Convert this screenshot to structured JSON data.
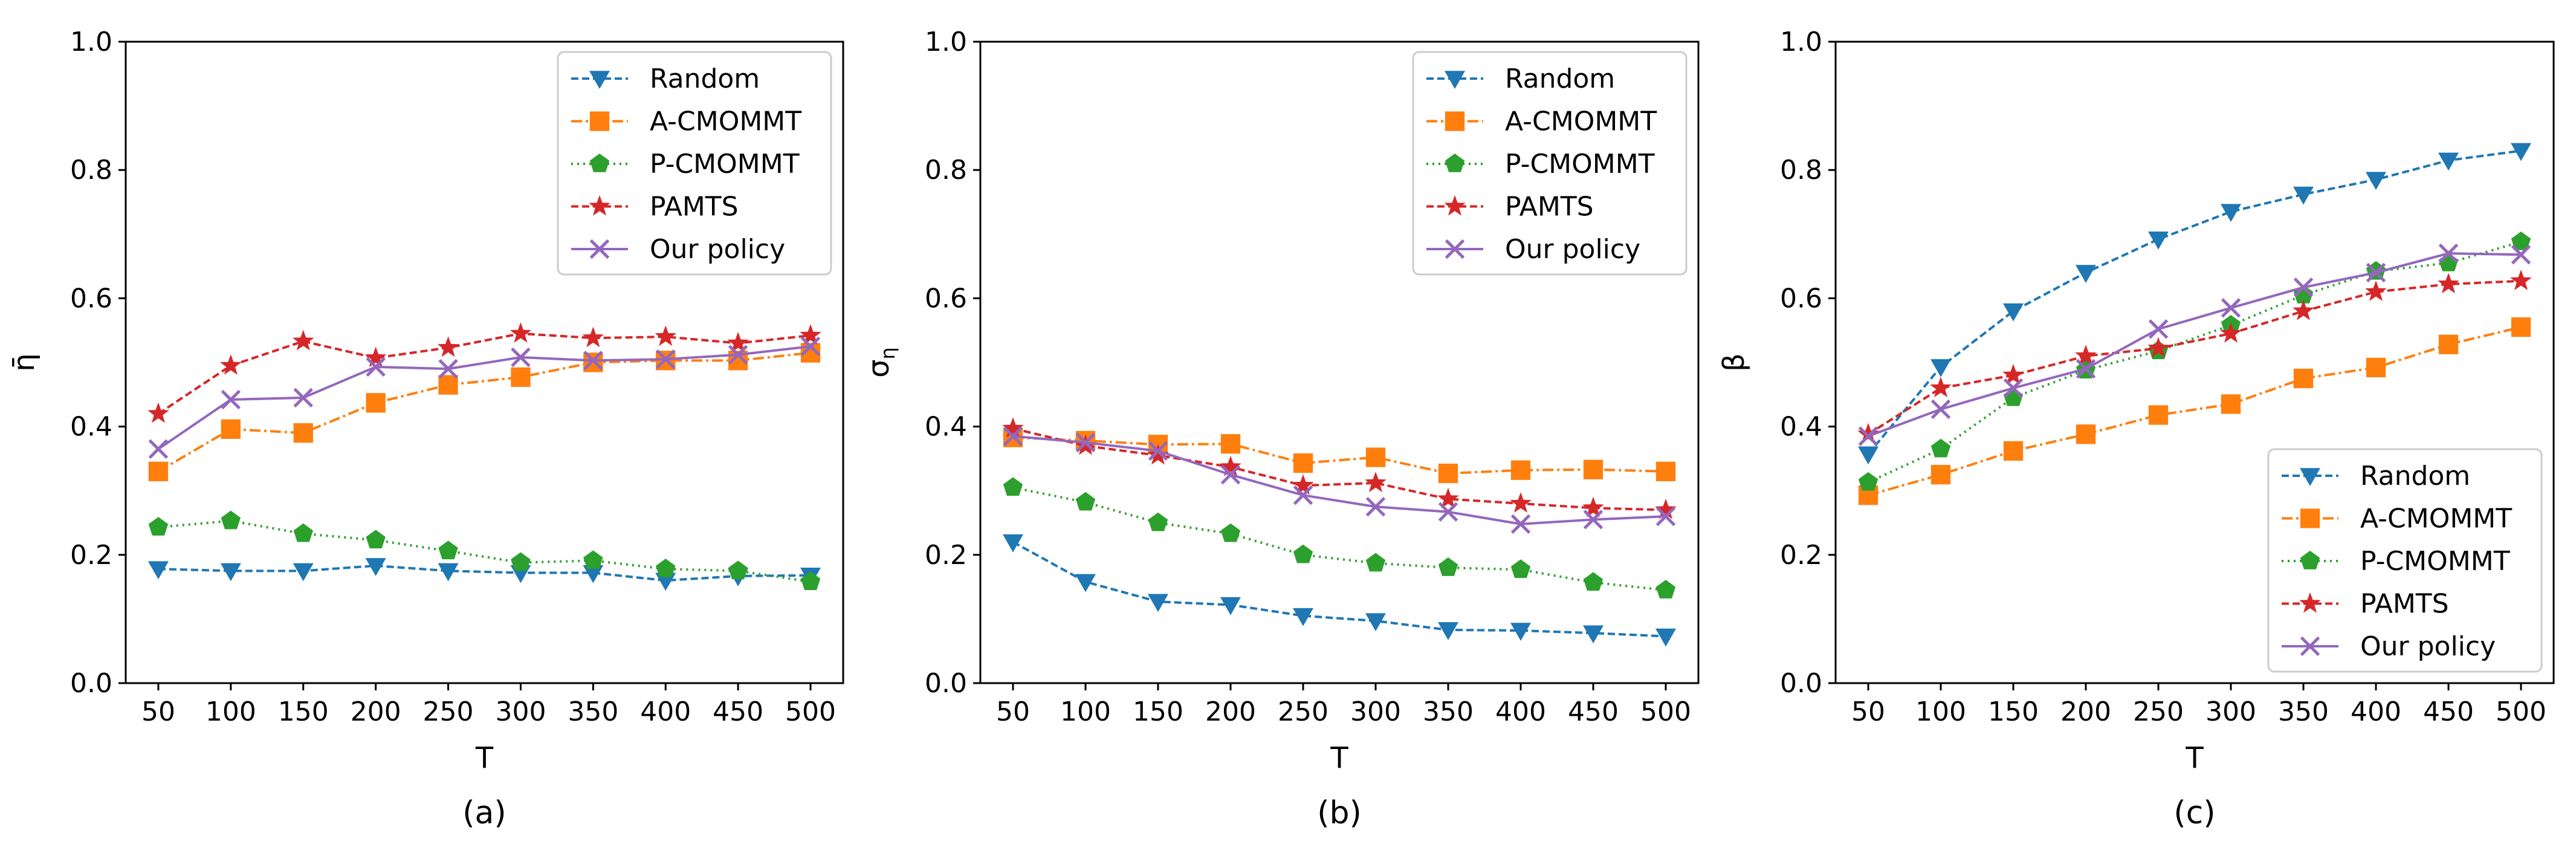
{
  "chart_data": [
    {
      "type": "line",
      "panel": "a",
      "caption": "(a)",
      "xlabel": "T",
      "ylabel": "η̄",
      "ylim": [
        0,
        1
      ],
      "y_ticks": [
        "0.0",
        "0.2",
        "0.4",
        "0.6",
        "0.8",
        "1.0"
      ],
      "x_ticks": [
        "50",
        "100",
        "150",
        "200",
        "250",
        "300",
        "350",
        "400",
        "450",
        "500"
      ],
      "x": [
        50,
        100,
        150,
        200,
        250,
        300,
        350,
        400,
        450,
        500
      ],
      "legend_position": "top-right",
      "series": [
        {
          "name": "Random",
          "values": [
            0.178,
            0.175,
            0.175,
            0.183,
            0.175,
            0.172,
            0.172,
            0.16,
            0.167,
            0.168
          ]
        },
        {
          "name": "A-CMOMMT",
          "values": [
            0.33,
            0.396,
            0.39,
            0.437,
            0.465,
            0.477,
            0.5,
            0.503,
            0.503,
            0.515
          ]
        },
        {
          "name": "P-CMOMMT",
          "values": [
            0.243,
            0.253,
            0.233,
            0.223,
            0.206,
            0.188,
            0.191,
            0.178,
            0.175,
            0.158
          ]
        },
        {
          "name": "PAMTS",
          "values": [
            0.42,
            0.495,
            0.533,
            0.507,
            0.523,
            0.545,
            0.538,
            0.54,
            0.53,
            0.542
          ]
        },
        {
          "name": "Our policy",
          "values": [
            0.365,
            0.442,
            0.445,
            0.493,
            0.49,
            0.508,
            0.503,
            0.505,
            0.512,
            0.525
          ]
        }
      ]
    },
    {
      "type": "line",
      "panel": "b",
      "caption": "(b)",
      "xlabel": "T",
      "ylabel": "σ",
      "ylabel_sub": "η",
      "ylim": [
        0,
        1
      ],
      "y_ticks": [
        "0.0",
        "0.2",
        "0.4",
        "0.6",
        "0.8",
        "1.0"
      ],
      "x_ticks": [
        "50",
        "100",
        "150",
        "200",
        "250",
        "300",
        "350",
        "400",
        "450",
        "500"
      ],
      "x": [
        50,
        100,
        150,
        200,
        250,
        300,
        350,
        400,
        450,
        500
      ],
      "legend_position": "top-right",
      "series": [
        {
          "name": "Random",
          "values": [
            0.22,
            0.158,
            0.127,
            0.122,
            0.105,
            0.097,
            0.083,
            0.082,
            0.078,
            0.073
          ]
        },
        {
          "name": "A-CMOMMT",
          "values": [
            0.383,
            0.378,
            0.372,
            0.373,
            0.343,
            0.352,
            0.327,
            0.332,
            0.333,
            0.33
          ]
        },
        {
          "name": "P-CMOMMT",
          "values": [
            0.305,
            0.282,
            0.25,
            0.233,
            0.2,
            0.187,
            0.18,
            0.177,
            0.157,
            0.145
          ]
        },
        {
          "name": "PAMTS",
          "values": [
            0.397,
            0.37,
            0.355,
            0.337,
            0.308,
            0.312,
            0.287,
            0.28,
            0.273,
            0.27
          ]
        },
        {
          "name": "Our policy",
          "values": [
            0.385,
            0.375,
            0.362,
            0.325,
            0.293,
            0.275,
            0.267,
            0.248,
            0.255,
            0.26
          ]
        }
      ]
    },
    {
      "type": "line",
      "panel": "c",
      "caption": "(c)",
      "xlabel": "T",
      "ylabel": "β",
      "ylim": [
        0,
        1
      ],
      "y_ticks": [
        "0.0",
        "0.2",
        "0.4",
        "0.6",
        "0.8",
        "1.0"
      ],
      "x_ticks": [
        "50",
        "100",
        "150",
        "200",
        "250",
        "300",
        "350",
        "400",
        "450",
        "500"
      ],
      "x": [
        50,
        100,
        150,
        200,
        250,
        300,
        350,
        400,
        450,
        500
      ],
      "legend_position": "bottom-right",
      "series": [
        {
          "name": "Random",
          "values": [
            0.357,
            0.493,
            0.58,
            0.64,
            0.692,
            0.735,
            0.762,
            0.785,
            0.815,
            0.83
          ]
        },
        {
          "name": "A-CMOMMT",
          "values": [
            0.293,
            0.325,
            0.362,
            0.388,
            0.418,
            0.435,
            0.475,
            0.492,
            0.528,
            0.555
          ]
        },
        {
          "name": "P-CMOMMT",
          "values": [
            0.313,
            0.365,
            0.445,
            0.488,
            0.518,
            0.558,
            0.605,
            0.642,
            0.655,
            0.688
          ]
        },
        {
          "name": "PAMTS",
          "values": [
            0.388,
            0.46,
            0.48,
            0.51,
            0.522,
            0.545,
            0.58,
            0.61,
            0.622,
            0.627
          ]
        },
        {
          "name": "Our policy",
          "values": [
            0.385,
            0.427,
            0.46,
            0.49,
            0.552,
            0.585,
            0.617,
            0.64,
            0.67,
            0.668
          ]
        }
      ]
    }
  ],
  "style": {
    "series_colors": [
      "#1f77b4",
      "#ff7f0e",
      "#2ca02c",
      "#d62728",
      "#9467bd"
    ],
    "series_markers": [
      "triangle-down",
      "square",
      "pentagon",
      "star",
      "x"
    ],
    "series_dashes": [
      "12,6",
      "18,6,4,6",
      "3,7",
      "12,6",
      "none"
    ],
    "axis_color": "#000000",
    "legend_border": "#cccccc"
  }
}
